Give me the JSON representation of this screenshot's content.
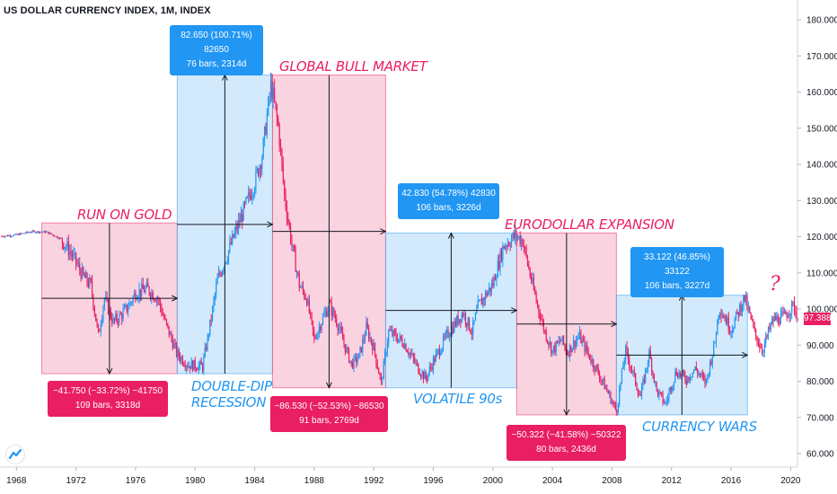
{
  "title": "US DOLLAR CURRENCY INDEX, 1M, INDEX",
  "colors": {
    "pink_fill": "#f8bbd0",
    "blue_fill": "#bbdefb",
    "pink": "#e91e63",
    "blue": "#2196f3",
    "candle_up": "#2196f3",
    "candle_down": "#e91e63"
  },
  "annotations": {
    "run_on_gold": {
      "label": "RUN ON GOLD",
      "line1": "−41.750 (−33.72%) −41750",
      "line2": "109 bars, 3318d"
    },
    "double_dip": {
      "label_line1": "DOUBLE-DIP",
      "label_line2": "RECESSION",
      "line1": "82.650 (100.71%) 82650",
      "line2": "76 bars, 2314d"
    },
    "global_bull": {
      "label": "GLOBAL BULL MARKET",
      "line1": "−86.530 (−52.53%) −86530",
      "line2": "91 bars, 2769d"
    },
    "volatile_90s": {
      "label": "VOLATILE 90s",
      "line1": "42.830 (54.78%) 42830",
      "line2": "106 bars, 3226d"
    },
    "eurodollar": {
      "label": "EURODOLLAR EXPANSION",
      "line1": "−50.322 (−41.58%) −50322",
      "line2": "80 bars, 2436d"
    },
    "currency_wars": {
      "label": "CURRENCY WARS",
      "line1": "33.122 (46.85%) 33122",
      "line2": "106 bars, 3227d"
    }
  },
  "question_mark": "?",
  "current_price": "97.388",
  "chart_data": {
    "type": "candlestick",
    "title": "US DOLLAR CURRENCY INDEX, 1M, INDEX",
    "x_ticks": [
      "1968",
      "1972",
      "1976",
      "1980",
      "1984",
      "1988",
      "1992",
      "1996",
      "2000",
      "2004",
      "2008",
      "2012",
      "2016",
      "2020"
    ],
    "y_ticks": [
      "60.000",
      "70.000",
      "80.000",
      "90.000",
      "100.000",
      "110.000",
      "120.000",
      "130.000",
      "140.000",
      "150.000",
      "160.000",
      "170.000",
      "180.000"
    ],
    "ylim": [
      55,
      184
    ],
    "xlim": [
      1966.8,
      2020.8
    ],
    "series": [
      {
        "points": [
          [
            1967.0,
            120.1
          ],
          [
            1968.0,
            120.5
          ],
          [
            1969.0,
            121.4
          ],
          [
            1970.0,
            121.3
          ],
          [
            1971.0,
            119.4
          ],
          [
            1971.7,
            115.3
          ],
          [
            1972.5,
            108.9
          ],
          [
            1973.0,
            106.5
          ],
          [
            1973.5,
            92.6
          ],
          [
            1973.9,
            103.0
          ],
          [
            1974.5,
            96.4
          ],
          [
            1975.0,
            98.1
          ],
          [
            1975.5,
            100.6
          ],
          [
            1976.0,
            104.5
          ],
          [
            1976.8,
            105.6
          ],
          [
            1977.5,
            102.8
          ],
          [
            1978.0,
            96.2
          ],
          [
            1978.8,
            87.5
          ],
          [
            1979.5,
            84.6
          ],
          [
            1980.5,
            84.1
          ],
          [
            1981.0,
            95.5
          ],
          [
            1981.5,
            108.0
          ],
          [
            1982.0,
            113.3
          ],
          [
            1982.8,
            122.3
          ],
          [
            1983.5,
            129.7
          ],
          [
            1984.0,
            135.0
          ],
          [
            1984.5,
            142.4
          ],
          [
            1985.1,
            162.1
          ],
          [
            1985.6,
            150.1
          ],
          [
            1986.0,
            131.5
          ],
          [
            1986.5,
            117.7
          ],
          [
            1987.0,
            106.7
          ],
          [
            1987.5,
            102.9
          ],
          [
            1988.0,
            91.5
          ],
          [
            1988.5,
            96.7
          ],
          [
            1989.0,
            101.1
          ],
          [
            1989.5,
            96.8
          ],
          [
            1990.0,
            90.4
          ],
          [
            1990.5,
            84.7
          ],
          [
            1991.0,
            86.7
          ],
          [
            1991.5,
            94.8
          ],
          [
            1992.0,
            89.2
          ],
          [
            1992.5,
            79.4
          ],
          [
            1993.0,
            93.7
          ],
          [
            1994.0,
            90.8
          ],
          [
            1995.0,
            83.5
          ],
          [
            1995.5,
            80.8
          ],
          [
            1996.0,
            85.5
          ],
          [
            1997.0,
            93.3
          ],
          [
            1998.0,
            99.0
          ],
          [
            1998.6,
            93.6
          ],
          [
            1999.0,
            100.6
          ],
          [
            2000.0,
            106.9
          ],
          [
            2000.7,
            117.3
          ],
          [
            2001.5,
            120.3
          ],
          [
            2002.0,
            118.9
          ],
          [
            2002.5,
            109.4
          ],
          [
            2003.0,
            100.9
          ],
          [
            2003.5,
            93.6
          ],
          [
            2004.0,
            88.4
          ],
          [
            2004.6,
            91.5
          ],
          [
            2005.0,
            88.1
          ],
          [
            2005.8,
            92.5
          ],
          [
            2006.5,
            86.8
          ],
          [
            2007.0,
            82.9
          ],
          [
            2007.8,
            76.3
          ],
          [
            2008.3,
            71.6
          ],
          [
            2008.9,
            88.5
          ],
          [
            2009.4,
            82.3
          ],
          [
            2009.9,
            75.5
          ],
          [
            2010.5,
            87.6
          ],
          [
            2011.0,
            77.3
          ],
          [
            2011.6,
            73.7
          ],
          [
            2012.3,
            82.7
          ],
          [
            2013.0,
            80.6
          ],
          [
            2013.6,
            83.5
          ],
          [
            2014.3,
            79.5
          ],
          [
            2014.9,
            90.5
          ],
          [
            2015.2,
            100.6
          ],
          [
            2016.0,
            94.3
          ],
          [
            2016.9,
            103.3
          ],
          [
            2017.6,
            93.1
          ],
          [
            2018.1,
            88.6
          ],
          [
            2018.8,
            96.9
          ],
          [
            2019.5,
            97.7
          ],
          [
            2020.2,
            101.0
          ],
          [
            2020.5,
            97.4
          ]
        ]
      }
    ],
    "moves": [
      {
        "name": "RUN ON GOLD",
        "from": [
          1969.7,
          123.8
        ],
        "to": [
          1978.8,
          82.1
        ],
        "change": "−41.750 (−33.72%) −41750",
        "bars": "109 bars, 3318d"
      },
      {
        "name": "DOUBLE-DIP RECESSION",
        "from": [
          1978.8,
          82.1
        ],
        "to": [
          1985.2,
          164.7
        ],
        "change": "82.650 (100.71%) 82650",
        "bars": "76 bars, 2314d"
      },
      {
        "name": "GLOBAL BULL MARKET",
        "from": [
          1985.2,
          164.7
        ],
        "to": [
          1992.8,
          78.2
        ],
        "change": "−86.530 (−52.53%) −86530",
        "bars": "91 bars, 2769d"
      },
      {
        "name": "VOLATILE 90s",
        "from": [
          1992.8,
          78.2
        ],
        "to": [
          2001.6,
          121.0
        ],
        "change": "42.830 (54.78%) 42830",
        "bars": "106 bars, 3226d"
      },
      {
        "name": "EURODOLLAR EXPANSION",
        "from": [
          2001.6,
          121.0
        ],
        "to": [
          2008.3,
          70.7
        ],
        "change": "−50.322 (−41.58%) −50322",
        "bars": "80 bars, 2436d"
      },
      {
        "name": "CURRENCY WARS",
        "from": [
          2008.3,
          70.7
        ],
        "to": [
          2017.1,
          103.8
        ],
        "change": "33.122 (46.85%) 33122",
        "bars": "106 bars, 3227d"
      }
    ],
    "last_price": 97.388,
    "grid": false,
    "legend": "none"
  }
}
